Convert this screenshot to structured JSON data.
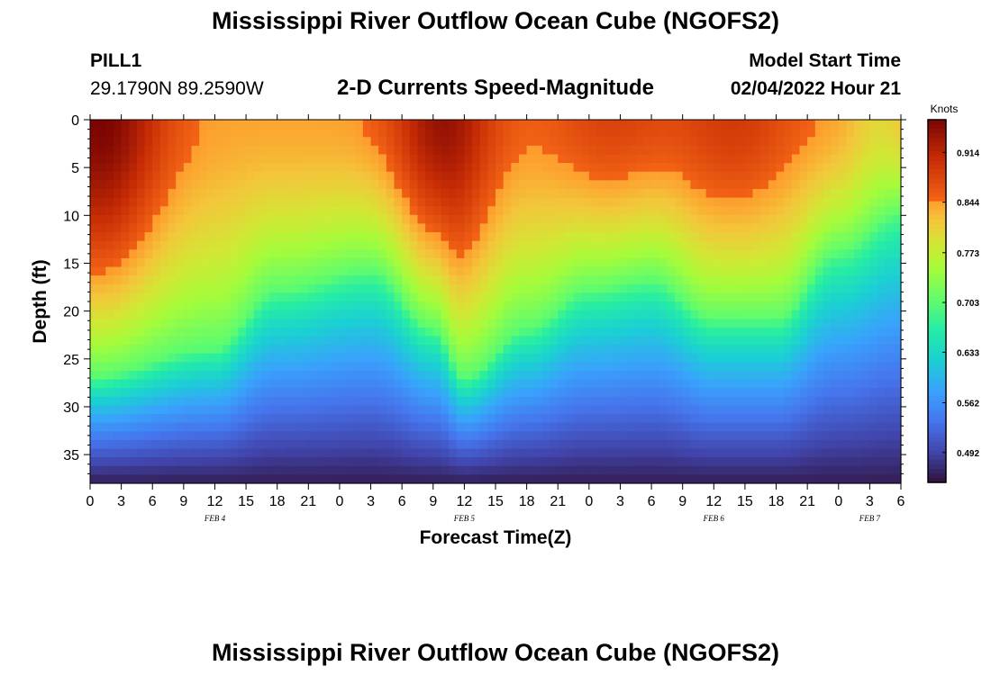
{
  "title": "Mississippi River Outflow Ocean Cube (NGOFS2)",
  "station": {
    "name": "PILL1",
    "coords": "29.1790N  89.2590W"
  },
  "subtitle": "2-D Currents Speed-Magnitude",
  "model_start": {
    "label": "Model Start Time",
    "value": "02/04/2022 Hour 21"
  },
  "footer_title": "Mississippi River Outflow Ocean Cube (NGOFS2)",
  "chart_data": {
    "type": "heatmap",
    "xlabel": "Forecast Time(Z)",
    "ylabel": "Depth (ft)",
    "x_tick_labels": [
      "0",
      "3",
      "6",
      "9",
      "12",
      "15",
      "18",
      "21",
      "0",
      "3",
      "6",
      "9",
      "12",
      "15",
      "18",
      "21",
      "0",
      "3",
      "6",
      "9",
      "12",
      "15",
      "18",
      "21",
      "0",
      "3",
      "6"
    ],
    "x_range_hours": [
      0,
      78
    ],
    "date_labels": [
      {
        "text": "FEB 4",
        "hour": 12
      },
      {
        "text": "FEB 5",
        "hour": 36
      },
      {
        "text": "FEB 6",
        "hour": 60
      },
      {
        "text": "FEB 7",
        "hour": 75
      }
    ],
    "y_tick_labels": [
      "0",
      "5",
      "10",
      "15",
      "20",
      "25",
      "30",
      "35"
    ],
    "y_range_ft": [
      0,
      38
    ],
    "colorbar": {
      "unit": "Knots",
      "ticks": [
        "0.914",
        "0.844",
        "0.773",
        "0.703",
        "0.633",
        "0.562",
        "0.492"
      ],
      "range": [
        0.45,
        0.96
      ]
    },
    "field_description_samples": {
      "depth_of_0.70_knot_contour_ft": [
        {
          "hour": 0,
          "depth": 27
        },
        {
          "hour": 12,
          "depth": 24
        },
        {
          "hour": 18,
          "depth": 18
        },
        {
          "hour": 27,
          "depth": 16
        },
        {
          "hour": 33,
          "depth": 22
        },
        {
          "hour": 36,
          "depth": 27
        },
        {
          "hour": 42,
          "depth": 22
        },
        {
          "hour": 48,
          "depth": 18
        },
        {
          "hour": 54,
          "depth": 17
        },
        {
          "hour": 60,
          "depth": 21
        },
        {
          "hour": 66,
          "depth": 21
        },
        {
          "hour": 72,
          "depth": 14
        },
        {
          "hour": 78,
          "depth": 10
        }
      ]
    }
  }
}
